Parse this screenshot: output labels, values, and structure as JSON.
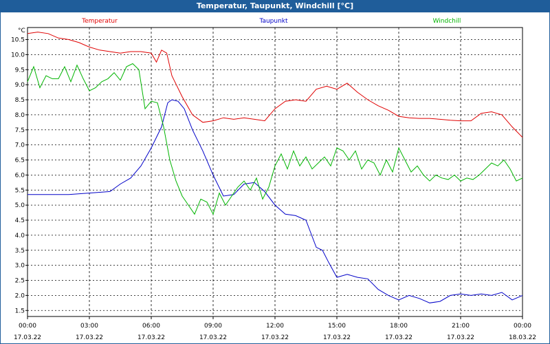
{
  "window": {
    "title": "Temperatur, Taupunkt, Windchill [°C]"
  },
  "chart_data": {
    "type": "line",
    "title": "Temperatur, Taupunkt, Windchill [°C]",
    "ylabel": "°C",
    "ylim": [
      1.3,
      10.9
    ],
    "xlim": [
      0,
      24
    ],
    "y_ticks": [
      "10.5",
      "10.0",
      "9.5",
      "9.0",
      "8.5",
      "8.0",
      "7.5",
      "7.0",
      "6.5",
      "6.0",
      "5.5",
      "5.0",
      "4.5",
      "4.0",
      "3.5",
      "3.0",
      "2.5",
      "2.0",
      "1.5"
    ],
    "x_ticks": [
      {
        "time": "00:00",
        "date": "17.03.22"
      },
      {
        "time": "03:00",
        "date": "17.03.22"
      },
      {
        "time": "06:00",
        "date": "17.03.22"
      },
      {
        "time": "09:00",
        "date": "17.03.22"
      },
      {
        "time": "12:00",
        "date": "17.03.22"
      },
      {
        "time": "15:00",
        "date": "17.03.22"
      },
      {
        "time": "18:00",
        "date": "17.03.22"
      },
      {
        "time": "21:00",
        "date": "17.03.22"
      },
      {
        "time": "00:00",
        "date": "18.03.22"
      }
    ],
    "grid": true,
    "legend": "top",
    "series": [
      {
        "name": "Temperatur",
        "color": "#e00000",
        "x": [
          0,
          0.5,
          1,
          1.5,
          2,
          2.5,
          3,
          3.5,
          4,
          4.5,
          5,
          5.5,
          6,
          6.25,
          6.5,
          6.75,
          7,
          7.5,
          8,
          8.5,
          9,
          9.5,
          10,
          10.5,
          11,
          11.5,
          12,
          12.5,
          13,
          13.5,
          14,
          14.5,
          15,
          15.5,
          16,
          16.5,
          17,
          17.5,
          18,
          18.5,
          19,
          19.5,
          20,
          20.5,
          21,
          21.5,
          22,
          22.5,
          23,
          23.5,
          24
        ],
        "values": [
          10.7,
          10.75,
          10.7,
          10.55,
          10.5,
          10.4,
          10.25,
          10.15,
          10.1,
          10.05,
          10.1,
          10.1,
          10.05,
          9.75,
          10.15,
          10.05,
          9.3,
          8.6,
          8.0,
          7.75,
          7.8,
          7.9,
          7.85,
          7.9,
          7.85,
          7.8,
          8.2,
          8.45,
          8.5,
          8.45,
          8.85,
          8.95,
          8.85,
          9.05,
          8.75,
          8.5,
          8.3,
          8.15,
          7.95,
          7.9,
          7.88,
          7.88,
          7.85,
          7.82,
          7.8,
          7.8,
          8.05,
          8.1,
          8.0,
          7.6,
          7.25
        ]
      },
      {
        "name": "Taupunkt",
        "color": "#0000c8",
        "x": [
          0,
          1,
          2,
          3,
          4,
          4.5,
          5,
          5.5,
          6,
          6.5,
          6.8,
          7,
          7.3,
          7.6,
          8,
          8.5,
          9,
          9.5,
          10,
          10.5,
          11,
          11.5,
          12,
          12.5,
          13,
          13.5,
          14,
          14.3,
          14.6,
          15,
          15.5,
          16,
          16.5,
          17,
          17.5,
          18,
          18.5,
          19,
          19.5,
          20,
          20.5,
          21,
          21.5,
          22,
          22.5,
          23,
          23.5,
          24
        ],
        "values": [
          5.35,
          5.35,
          5.35,
          5.4,
          5.45,
          5.7,
          5.9,
          6.3,
          6.9,
          7.6,
          8.4,
          8.5,
          8.45,
          8.2,
          7.5,
          6.8,
          6.0,
          5.3,
          5.35,
          5.7,
          5.75,
          5.45,
          5.0,
          4.7,
          4.65,
          4.5,
          3.6,
          3.5,
          3.1,
          2.6,
          2.7,
          2.6,
          2.55,
          2.2,
          2.0,
          1.85,
          2.0,
          1.9,
          1.75,
          1.8,
          2.0,
          2.05,
          2.0,
          2.05,
          2.0,
          2.1,
          1.85,
          2.0
        ]
      },
      {
        "name": "Windchill",
        "color": "#00b400",
        "x": [
          0,
          0.3,
          0.6,
          0.9,
          1.2,
          1.5,
          1.8,
          2.1,
          2.4,
          2.7,
          3,
          3.3,
          3.6,
          3.9,
          4.2,
          4.5,
          4.8,
          5.1,
          5.4,
          5.7,
          6,
          6.3,
          6.6,
          6.9,
          7.2,
          7.5,
          7.8,
          8.1,
          8.4,
          8.7,
          9,
          9.3,
          9.6,
          9.9,
          10.2,
          10.5,
          10.8,
          11.1,
          11.4,
          11.7,
          12,
          12.3,
          12.6,
          12.9,
          13.2,
          13.5,
          13.8,
          14.1,
          14.4,
          14.7,
          15,
          15.3,
          15.6,
          15.9,
          16.2,
          16.5,
          16.8,
          17.1,
          17.4,
          17.7,
          18,
          18.3,
          18.6,
          18.9,
          19.2,
          19.5,
          19.8,
          20.1,
          20.4,
          20.7,
          21,
          21.3,
          21.6,
          21.9,
          22.2,
          22.5,
          22.8,
          23.1,
          23.4,
          23.7,
          24
        ],
        "values": [
          9.1,
          9.6,
          8.9,
          9.3,
          9.2,
          9.2,
          9.6,
          9.1,
          9.65,
          9.2,
          8.8,
          8.9,
          9.1,
          9.2,
          9.4,
          9.15,
          9.6,
          9.7,
          9.5,
          8.2,
          8.45,
          8.4,
          7.6,
          6.5,
          5.8,
          5.3,
          5.0,
          4.7,
          5.2,
          5.1,
          4.7,
          5.4,
          5.0,
          5.3,
          5.6,
          5.8,
          5.5,
          5.9,
          5.2,
          5.6,
          6.3,
          6.7,
          6.2,
          6.8,
          6.3,
          6.6,
          6.2,
          6.4,
          6.6,
          6.3,
          6.9,
          6.8,
          6.5,
          6.8,
          6.2,
          6.5,
          6.4,
          6.0,
          6.5,
          6.1,
          6.9,
          6.5,
          6.1,
          6.3,
          6.0,
          5.8,
          6.0,
          5.9,
          5.85,
          6.0,
          5.8,
          5.9,
          5.85,
          6.0,
          6.2,
          6.4,
          6.3,
          6.5,
          6.2,
          5.8,
          5.9
        ]
      }
    ]
  }
}
